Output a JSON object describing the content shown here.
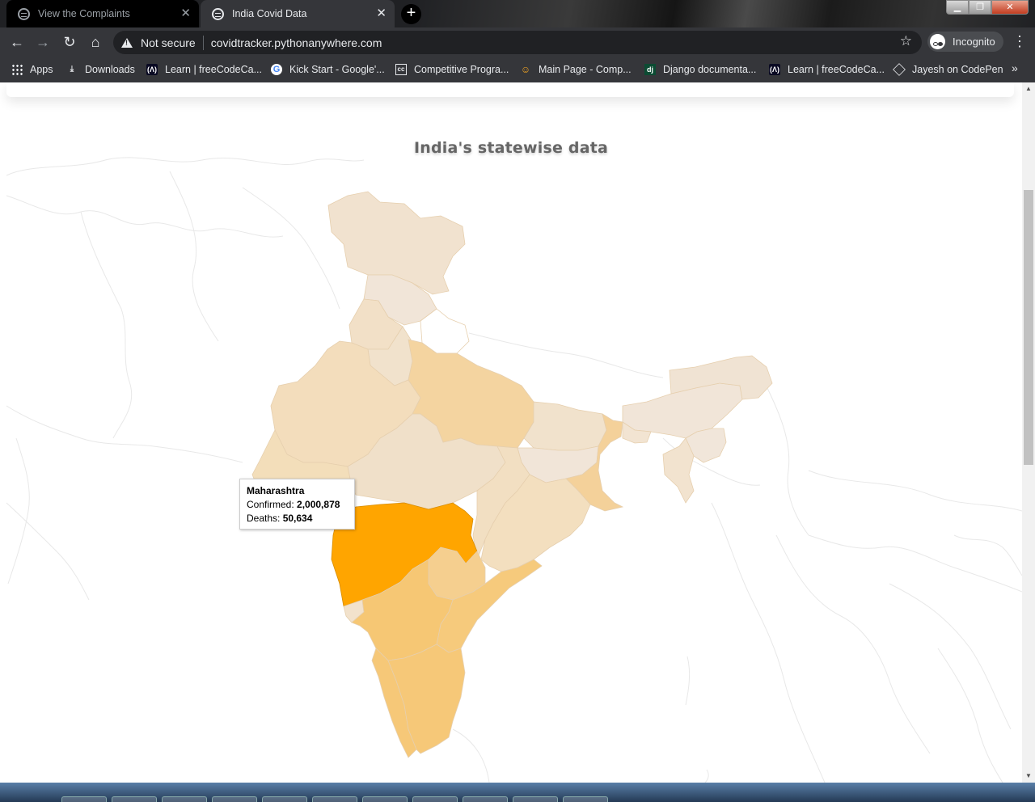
{
  "browser": {
    "tabs": [
      {
        "title": "View the Complaints",
        "active": false
      },
      {
        "title": "India Covid Data",
        "active": true
      }
    ],
    "new_tab_label": "+",
    "address": {
      "security_label": "Not secure",
      "url": "covidtracker.pythonanywhere.com"
    },
    "profile_label": "Incognito",
    "bookmarks": [
      {
        "label": "Apps",
        "icon": "apps-grid-icon"
      },
      {
        "label": "Downloads",
        "icon": "download-icon"
      },
      {
        "label": "Learn | freeCodeCa...",
        "icon": "freecodecamp-icon"
      },
      {
        "label": "Kick Start - Google'...",
        "icon": "google-icon"
      },
      {
        "label": "Competitive Progra...",
        "icon": "codechef-cc-icon"
      },
      {
        "label": "Main Page - Comp...",
        "icon": "chef-icon"
      },
      {
        "label": "Django documenta...",
        "icon": "django-icon"
      },
      {
        "label": "Learn | freeCodeCa...",
        "icon": "freecodecamp-icon"
      },
      {
        "label": "Jayesh on CodePen",
        "icon": "codepen-icon"
      }
    ],
    "bookmarks_overflow": "»"
  },
  "page": {
    "title": "India's statewise data",
    "tooltip": {
      "state": "Maharashtra",
      "confirmed_label": "Confirmed:",
      "confirmed_value": "2,000,878",
      "deaths_label": "Deaths:",
      "deaths_value": "50,634"
    }
  },
  "colors": {
    "highlight": "#ffa500",
    "high": "#f6c878",
    "mid": "#f4d49e",
    "low": "#f3dfc0",
    "lowest": "#f1e6da",
    "border_world": "#e8e8e8"
  }
}
